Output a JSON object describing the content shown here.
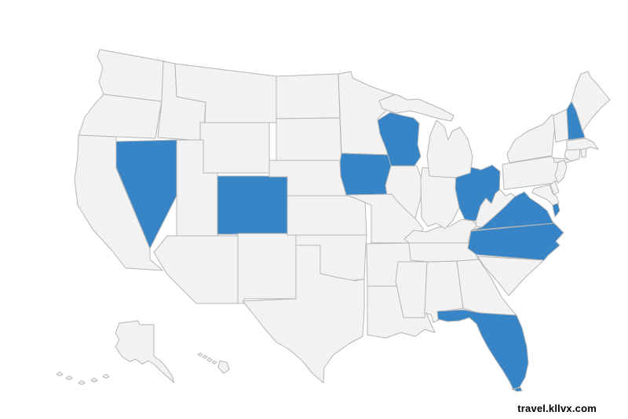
{
  "map": {
    "background": "#ffffff",
    "state_default_fill": "#f2f2f2",
    "state_border_color": "#b5b5b5",
    "highlight_color": "#3785c6",
    "highlighted_states": [
      "Nevada",
      "Colorado",
      "Iowa",
      "Wisconsin",
      "Ohio",
      "New Hampshire",
      "Virginia",
      "North Carolina",
      "Florida"
    ],
    "states": [
      {
        "id": "wa",
        "name": "Washington"
      },
      {
        "id": "or",
        "name": "Oregon"
      },
      {
        "id": "ca",
        "name": "California"
      },
      {
        "id": "nv",
        "name": "Nevada"
      },
      {
        "id": "id",
        "name": "Idaho"
      },
      {
        "id": "mt",
        "name": "Montana"
      },
      {
        "id": "wy",
        "name": "Wyoming"
      },
      {
        "id": "ut",
        "name": "Utah"
      },
      {
        "id": "co",
        "name": "Colorado"
      },
      {
        "id": "az",
        "name": "Arizona"
      },
      {
        "id": "nm",
        "name": "New Mexico"
      },
      {
        "id": "nd",
        "name": "North Dakota"
      },
      {
        "id": "sd",
        "name": "South Dakota"
      },
      {
        "id": "ne",
        "name": "Nebraska"
      },
      {
        "id": "ks",
        "name": "Kansas"
      },
      {
        "id": "ok",
        "name": "Oklahoma"
      },
      {
        "id": "tx",
        "name": "Texas"
      },
      {
        "id": "mn",
        "name": "Minnesota"
      },
      {
        "id": "ia",
        "name": "Iowa"
      },
      {
        "id": "wi",
        "name": "Wisconsin"
      },
      {
        "id": "il",
        "name": "Illinois"
      },
      {
        "id": "mo",
        "name": "Missouri"
      },
      {
        "id": "ar",
        "name": "Arkansas"
      },
      {
        "id": "la",
        "name": "Louisiana"
      },
      {
        "id": "ms",
        "name": "Mississippi"
      },
      {
        "id": "al",
        "name": "Alabama"
      },
      {
        "id": "ga",
        "name": "Georgia"
      },
      {
        "id": "fl",
        "name": "Florida"
      },
      {
        "id": "tn",
        "name": "Tennessee"
      },
      {
        "id": "ky",
        "name": "Kentucky"
      },
      {
        "id": "in",
        "name": "Indiana"
      },
      {
        "id": "oh",
        "name": "Ohio"
      },
      {
        "id": "mi",
        "name": "Michigan"
      },
      {
        "id": "wv",
        "name": "West Virginia"
      },
      {
        "id": "va",
        "name": "Virginia"
      },
      {
        "id": "nc",
        "name": "North Carolina"
      },
      {
        "id": "sc",
        "name": "South Carolina"
      },
      {
        "id": "pa",
        "name": "Pennsylvania"
      },
      {
        "id": "ny",
        "name": "New York"
      },
      {
        "id": "nj",
        "name": "New Jersey"
      },
      {
        "id": "vt",
        "name": "Vermont"
      },
      {
        "id": "nh",
        "name": "New Hampshire"
      },
      {
        "id": "me",
        "name": "Maine"
      },
      {
        "id": "ma",
        "name": "Massachusetts"
      },
      {
        "id": "ct",
        "name": "Connecticut"
      },
      {
        "id": "ri",
        "name": "Rhode Island"
      },
      {
        "id": "de",
        "name": "Delaware"
      },
      {
        "id": "md",
        "name": "Maryland"
      },
      {
        "id": "ak",
        "name": "Alaska"
      },
      {
        "id": "hi",
        "name": "Hawaii"
      }
    ]
  },
  "watermark": {
    "text": "travel.kllvx.com",
    "color": "#000000"
  }
}
